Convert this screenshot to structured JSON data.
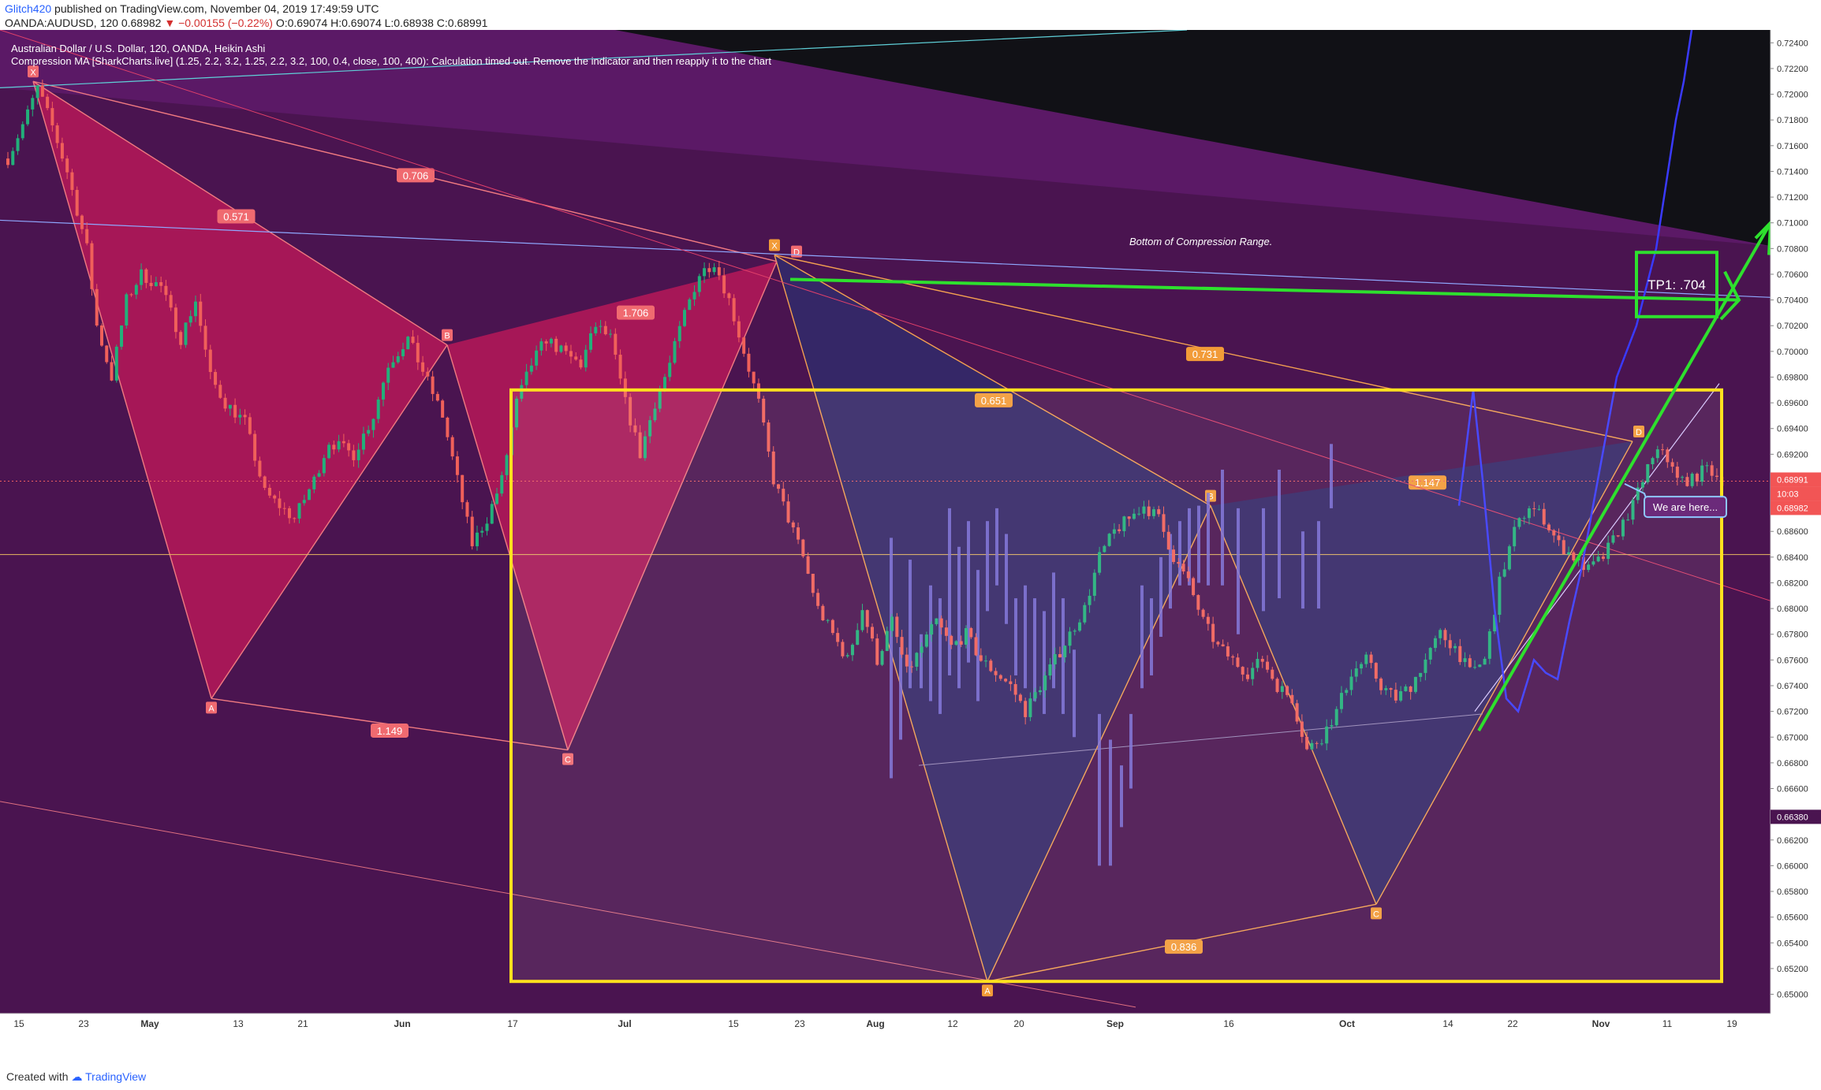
{
  "header": {
    "author": "Glitch420",
    "published": "published on TradingView.com, November 04, 2019 17:49:59 UTC",
    "symbol_line": "OANDA:AUDUSD, 120",
    "last": "0.68982",
    "change": "−0.00155 (−0.22%)",
    "ohlc": "O:0.69074 H:0.69074 L:0.68938 C:0.68991"
  },
  "legend": {
    "title": "Australian Dollar / U.S. Dollar, 120, OANDA, Heikin Ashi",
    "indicator": "Compression MA [SharkCharts.live] (1.25, 2.2, 3.2, 1.25, 2.2, 3.2, 100, 0.4, close, 100, 400): Calculation timed out. Remove the indicator and then reapply it to the chart"
  },
  "footer": {
    "created": "Created with",
    "brand": "TradingView"
  },
  "colors": {
    "background": "#4a1450",
    "upper_band": "#5e1a6a",
    "black_area": "#111116",
    "bullish_pattern": "#c0185a",
    "bearish_pattern": "#2f2d6e",
    "box": "#ffe11e",
    "trend": "#2ee02e",
    "candle_up": "#22b07a",
    "candle_down": "#f0605a",
    "label_bg": "#f29b38"
  },
  "annotations": {
    "compression_note": "Bottom of Compression Range.",
    "tp_label": "TP1: .704",
    "we_are_here": "We are here...",
    "price_tags": [
      "0.68991",
      "10:03",
      "0.68982",
      "0.66380"
    ]
  },
  "chart_data": {
    "type": "candlestick",
    "symbol": "AUDUSD",
    "timeframe": "120",
    "ylim": [
      0.6485,
      0.725
    ],
    "y_ticks": [
      0.65,
      0.652,
      0.654,
      0.656,
      0.658,
      0.66,
      0.662,
      0.664,
      0.666,
      0.668,
      0.67,
      0.672,
      0.674,
      0.676,
      0.678,
      0.68,
      0.682,
      0.684,
      0.686,
      0.688,
      0.69,
      0.692,
      0.694,
      0.696,
      0.698,
      0.7,
      0.702,
      0.704,
      0.706,
      0.708,
      0.71,
      0.712,
      0.714,
      0.716,
      0.718,
      0.72,
      0.722,
      0.724
    ],
    "x_ticks": [
      "15",
      "23",
      "May",
      "13",
      "21",
      "Jun",
      "17",
      "Jul",
      "15",
      "23",
      "Aug",
      "12",
      "20",
      "Sep",
      "16",
      "Oct",
      "14",
      "22",
      "Nov",
      "11",
      "19"
    ],
    "patterns": [
      {
        "name": "bullish-1",
        "points": [
          {
            "label": "X",
            "price": 0.721
          },
          {
            "label": "A",
            "price": 0.673
          },
          {
            "label": "B",
            "price": 0.7005
          },
          {
            "label": "C",
            "price": 0.669
          },
          {
            "label": "D",
            "price": 0.707
          }
        ],
        "ratios": [
          "0.571",
          "1.149",
          "1.706",
          "0.706"
        ]
      },
      {
        "name": "bearish-2",
        "points": [
          {
            "label": "X",
            "price": 0.7075
          },
          {
            "label": "A",
            "price": 0.651
          },
          {
            "label": "B",
            "price": 0.688
          },
          {
            "label": "C",
            "price": 0.657
          },
          {
            "label": "D",
            "price": 0.693
          }
        ],
        "ratios": [
          "0.651",
          "0.836",
          "1.147",
          "0.731"
        ]
      }
    ],
    "levels": [
      {
        "name": "TP1",
        "price": 0.704
      },
      {
        "name": "last",
        "price": 0.68991
      },
      {
        "name": "pattern-low",
        "price": 0.6638
      }
    ],
    "close_path": [
      [
        0,
        0.715
      ],
      [
        4,
        0.7185
      ],
      [
        6,
        0.7205
      ],
      [
        9,
        0.7175
      ],
      [
        12,
        0.714
      ],
      [
        16,
        0.708
      ],
      [
        18,
        0.702
      ],
      [
        21,
        0.698
      ],
      [
        24,
        0.704
      ],
      [
        27,
        0.706
      ],
      [
        31,
        0.705
      ],
      [
        35,
        0.701
      ],
      [
        38,
        0.704
      ],
      [
        41,
        0.698
      ],
      [
        44,
        0.696
      ],
      [
        48,
        0.6945
      ],
      [
        52,
        0.689
      ],
      [
        55,
        0.688
      ],
      [
        58,
        0.687
      ],
      [
        62,
        0.69
      ],
      [
        65,
        0.693
      ],
      [
        70,
        0.692
      ],
      [
        74,
        0.695
      ],
      [
        77,
        0.699
      ],
      [
        81,
        0.701
      ],
      [
        84,
        0.6985
      ],
      [
        88,
        0.695
      ],
      [
        91,
        0.69
      ],
      [
        94,
        0.685
      ],
      [
        97,
        0.687
      ],
      [
        100,
        0.69
      ],
      [
        103,
        0.696
      ],
      [
        106,
        0.699
      ],
      [
        109,
        0.701
      ],
      [
        112,
        0.7
      ],
      [
        116,
        0.699
      ],
      [
        119,
        0.702
      ],
      [
        122,
        0.701
      ],
      [
        125,
        0.696
      ],
      [
        128,
        0.692
      ],
      [
        131,
        0.696
      ],
      [
        134,
        0.699
      ],
      [
        137,
        0.703
      ],
      [
        140,
        0.706
      ],
      [
        143,
        0.707
      ],
      [
        146,
        0.704
      ],
      [
        149,
        0.7
      ],
      [
        152,
        0.696
      ],
      [
        155,
        0.69
      ],
      [
        158,
        0.687
      ],
      [
        161,
        0.684
      ],
      [
        164,
        0.68
      ],
      [
        167,
        0.678
      ],
      [
        170,
        0.676
      ],
      [
        173,
        0.68
      ],
      [
        176,
        0.676
      ],
      [
        179,
        0.679
      ],
      [
        182,
        0.675
      ],
      [
        185,
        0.677
      ],
      [
        188,
        0.679
      ],
      [
        191,
        0.677
      ],
      [
        194,
        0.678
      ],
      [
        197,
        0.676
      ],
      [
        200,
        0.675
      ],
      [
        203,
        0.674
      ],
      [
        206,
        0.672
      ],
      [
        209,
        0.674
      ],
      [
        212,
        0.676
      ],
      [
        215,
        0.678
      ],
      [
        218,
        0.68
      ],
      [
        221,
        0.684
      ],
      [
        224,
        0.686
      ],
      [
        227,
        0.687
      ],
      [
        230,
        0.688
      ],
      [
        233,
        0.687
      ],
      [
        236,
        0.684
      ],
      [
        239,
        0.682
      ],
      [
        242,
        0.679
      ],
      [
        245,
        0.677
      ],
      [
        248,
        0.676
      ],
      [
        251,
        0.675
      ],
      [
        254,
        0.676
      ],
      [
        257,
        0.674
      ],
      [
        260,
        0.673
      ],
      [
        263,
        0.669
      ],
      [
        266,
        0.67
      ],
      [
        269,
        0.672
      ],
      [
        272,
        0.675
      ],
      [
        275,
        0.676
      ],
      [
        278,
        0.674
      ],
      [
        281,
        0.673
      ],
      [
        284,
        0.674
      ],
      [
        287,
        0.676
      ],
      [
        290,
        0.678
      ],
      [
        293,
        0.677
      ],
      [
        296,
        0.675
      ],
      [
        299,
        0.676
      ],
      [
        302,
        0.682
      ],
      [
        305,
        0.686
      ],
      [
        308,
        0.688
      ],
      [
        311,
        0.687
      ],
      [
        314,
        0.685
      ],
      [
        317,
        0.684
      ],
      [
        320,
        0.683
      ],
      [
        323,
        0.684
      ],
      [
        326,
        0.686
      ],
      [
        329,
        0.688
      ],
      [
        332,
        0.691
      ],
      [
        335,
        0.6925
      ],
      [
        338,
        0.69
      ],
      [
        341,
        0.69
      ],
      [
        344,
        0.691
      ],
      [
        347,
        0.69
      ]
    ]
  }
}
